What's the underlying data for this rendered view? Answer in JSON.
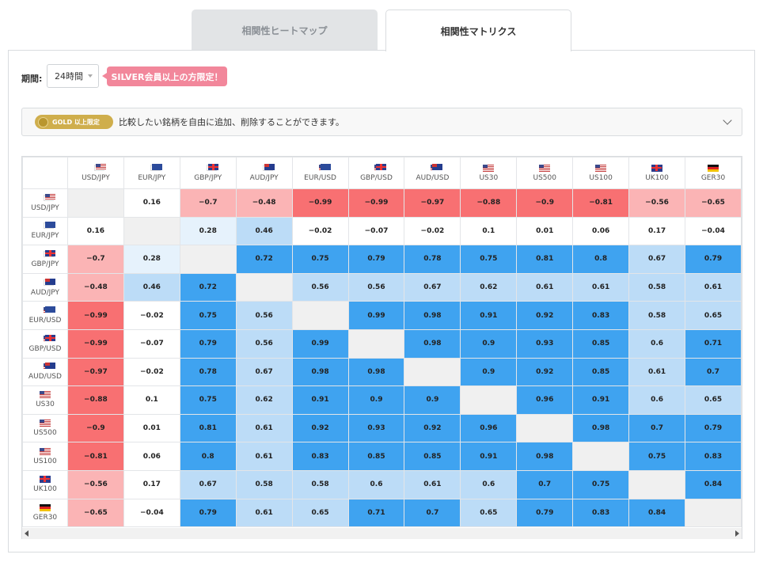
{
  "tabs": [
    {
      "label": "相関性ヒートマップ"
    },
    {
      "label": "相関性マトリクス"
    }
  ],
  "period": {
    "label": "期間:",
    "value": "24時間"
  },
  "silver_badge": "SILVER会員以上の方限定！",
  "gold": {
    "badge": "GOLD 以上限定",
    "text": "比較したい銘柄を自由に追加、削除することができます。"
  },
  "colors": {
    "strong_pos": "#3fa3f0",
    "mid_pos": "#bcdcf7",
    "light_pos": "#e6f2fc",
    "strong_neg": "#f87072",
    "mid_neg": "#fbb4b5",
    "diag": "#f0f0f0"
  },
  "symbols": [
    {
      "label": "USD/JPY",
      "flags": [
        "us",
        "jp"
      ]
    },
    {
      "label": "EUR/JPY",
      "flags": [
        "eu",
        "jp"
      ]
    },
    {
      "label": "GBP/JPY",
      "flags": [
        "gb",
        "jp"
      ]
    },
    {
      "label": "AUD/JPY",
      "flags": [
        "au",
        "jp"
      ]
    },
    {
      "label": "EUR/USD",
      "flags": [
        "eu",
        "us"
      ]
    },
    {
      "label": "GBP/USD",
      "flags": [
        "gb",
        "us"
      ]
    },
    {
      "label": "AUD/USD",
      "flags": [
        "au",
        "us"
      ]
    },
    {
      "label": "US30",
      "flags": [
        "us"
      ]
    },
    {
      "label": "US500",
      "flags": [
        "us"
      ]
    },
    {
      "label": "US100",
      "flags": [
        "us"
      ]
    },
    {
      "label": "UK100",
      "flags": [
        "gb"
      ]
    },
    {
      "label": "GER30",
      "flags": [
        "de"
      ]
    }
  ],
  "matrix": [
    [
      null,
      "0.16",
      "-0.7",
      "-0.48",
      "-0.99",
      "-0.99",
      "-0.97",
      "-0.88",
      "-0.9",
      "-0.81",
      "-0.56",
      "-0.65"
    ],
    [
      "0.16",
      null,
      "0.28",
      "0.46",
      "-0.02",
      "-0.07",
      "-0.02",
      "0.1",
      "0.01",
      "0.06",
      "0.17",
      "-0.04"
    ],
    [
      "-0.7",
      "0.28",
      null,
      "0.72",
      "0.75",
      "0.79",
      "0.78",
      "0.75",
      "0.81",
      "0.8",
      "0.67",
      "0.79"
    ],
    [
      "-0.48",
      "0.46",
      "0.72",
      null,
      "0.56",
      "0.56",
      "0.67",
      "0.62",
      "0.61",
      "0.61",
      "0.58",
      "0.61"
    ],
    [
      "-0.99",
      "-0.02",
      "0.75",
      "0.56",
      null,
      "0.99",
      "0.98",
      "0.91",
      "0.92",
      "0.83",
      "0.58",
      "0.65"
    ],
    [
      "-0.99",
      "-0.07",
      "0.79",
      "0.56",
      "0.99",
      null,
      "0.98",
      "0.9",
      "0.93",
      "0.85",
      "0.6",
      "0.71"
    ],
    [
      "-0.97",
      "-0.02",
      "0.78",
      "0.67",
      "0.98",
      "0.98",
      null,
      "0.9",
      "0.92",
      "0.85",
      "0.61",
      "0.7"
    ],
    [
      "-0.88",
      "0.1",
      "0.75",
      "0.62",
      "0.91",
      "0.9",
      "0.9",
      null,
      "0.96",
      "0.91",
      "0.6",
      "0.65"
    ],
    [
      "-0.9",
      "0.01",
      "0.81",
      "0.61",
      "0.92",
      "0.93",
      "0.92",
      "0.96",
      null,
      "0.98",
      "0.7",
      "0.79"
    ],
    [
      "-0.81",
      "0.06",
      "0.8",
      "0.61",
      "0.83",
      "0.85",
      "0.85",
      "0.91",
      "0.98",
      null,
      "0.75",
      "0.83"
    ],
    [
      "-0.56",
      "0.17",
      "0.67",
      "0.58",
      "0.58",
      "0.6",
      "0.61",
      "0.6",
      "0.7",
      "0.75",
      null,
      "0.84"
    ],
    [
      "-0.65",
      "-0.04",
      "0.79",
      "0.61",
      "0.65",
      "0.71",
      "0.7",
      "0.65",
      "0.79",
      "0.83",
      "0.84",
      null
    ]
  ]
}
